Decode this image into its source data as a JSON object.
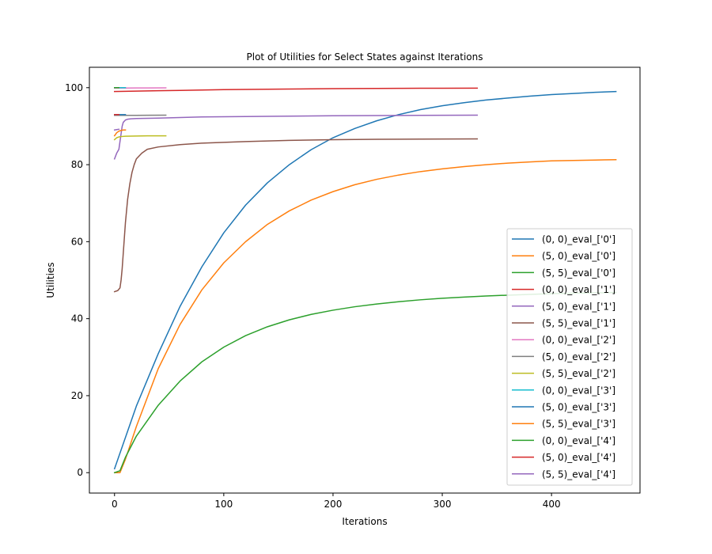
{
  "chart_data": {
    "type": "line",
    "title": "Plot of Utilities for Select States against Iterations",
    "xlabel": "Iterations",
    "ylabel": "Utilities",
    "xlim": [
      -23,
      481
    ],
    "ylim": [
      -5.3,
      105.3
    ],
    "xticks": [
      0,
      100,
      200,
      300,
      400
    ],
    "yticks": [
      0,
      20,
      40,
      60,
      80,
      100
    ],
    "grid": false,
    "legend_position": "lower-right",
    "series": [
      {
        "name": "(0, 0)_eval_['0']",
        "color": "#1f77b4",
        "x": [
          0,
          20,
          40,
          60,
          80,
          100,
          120,
          140,
          160,
          180,
          200,
          220,
          240,
          260,
          280,
          300,
          320,
          340,
          360,
          380,
          400,
          420,
          440,
          459
        ],
        "y": [
          1,
          17.3,
          30.9,
          43.2,
          53.5,
          62.3,
          69.5,
          75.3,
          80.0,
          83.9,
          87.0,
          89.4,
          91.4,
          93.0,
          94.3,
          95.3,
          96.1,
          96.8,
          97.3,
          97.8,
          98.2,
          98.5,
          98.8,
          99.0
        ]
      },
      {
        "name": "(5, 0)_eval_['0']",
        "color": "#ff7f0e",
        "x": [
          0,
          5,
          10,
          20,
          40,
          60,
          80,
          100,
          120,
          140,
          160,
          180,
          200,
          220,
          240,
          260,
          280,
          300,
          320,
          340,
          360,
          380,
          400,
          420,
          440,
          459
        ],
        "y": [
          0,
          0,
          3.5,
          12,
          27.0,
          38.5,
          47.5,
          54.5,
          60.0,
          64.5,
          68.0,
          70.8,
          73.0,
          74.8,
          76.2,
          77.3,
          78.2,
          78.9,
          79.5,
          80.0,
          80.4,
          80.7,
          81.0,
          81.1,
          81.2,
          81.3
        ]
      },
      {
        "name": "(5, 5)_eval_['0']",
        "color": "#2ca02c",
        "x": [
          0,
          5,
          10,
          20,
          40,
          60,
          80,
          100,
          120,
          140,
          160,
          180,
          200,
          220,
          240,
          260,
          280,
          300,
          320,
          340,
          360,
          380,
          400,
          420,
          440,
          459
        ],
        "y": [
          0,
          0.5,
          4.0,
          9.5,
          17.5,
          23.8,
          28.8,
          32.6,
          35.6,
          37.9,
          39.7,
          41.1,
          42.2,
          43.1,
          43.8,
          44.4,
          44.9,
          45.3,
          45.6,
          45.9,
          46.1,
          46.3,
          46.5,
          46.6,
          46.7,
          46.8
        ]
      },
      {
        "name": "(0, 0)_eval_['1']",
        "color": "#d62728",
        "x": [
          0,
          20,
          40,
          60,
          80,
          100,
          120,
          140,
          160,
          180,
          200,
          220,
          240,
          260,
          280,
          300,
          332
        ],
        "y": [
          99.0,
          99.1,
          99.2,
          99.3,
          99.4,
          99.5,
          99.55,
          99.6,
          99.65,
          99.7,
          99.75,
          99.78,
          99.8,
          99.82,
          99.84,
          99.86,
          99.88
        ]
      },
      {
        "name": "(5, 0)_eval_['1']",
        "color": "#9467bd",
        "x": [
          0,
          2,
          4,
          5,
          6,
          7,
          8,
          10,
          12,
          15,
          20,
          40,
          80,
          120,
          160,
          200,
          240,
          280,
          332
        ],
        "y": [
          81.5,
          83,
          84,
          86,
          88,
          90,
          91,
          91.6,
          91.8,
          91.9,
          92.0,
          92.1,
          92.4,
          92.5,
          92.6,
          92.7,
          92.75,
          92.8,
          92.85
        ]
      },
      {
        "name": "(5, 5)_eval_['1']",
        "color": "#8c564b",
        "x": [
          0,
          3,
          5,
          6,
          7,
          8,
          9,
          10,
          12,
          14,
          16,
          18,
          20,
          25,
          30,
          40,
          60,
          80,
          120,
          160,
          200,
          240,
          280,
          332
        ],
        "y": [
          47,
          47.3,
          48,
          50,
          53,
          57,
          61,
          65,
          71,
          75,
          78,
          80,
          81.5,
          83,
          84,
          84.6,
          85.2,
          85.6,
          86.0,
          86.3,
          86.5,
          86.6,
          86.65,
          86.7
        ]
      },
      {
        "name": "(0, 0)_eval_['2']",
        "color": "#e377c2",
        "x": [
          0,
          10,
          20,
          30,
          47
        ],
        "y": [
          99.9,
          99.9,
          99.92,
          99.93,
          99.95
        ]
      },
      {
        "name": "(5, 0)_eval_['2']",
        "color": "#7f7f7f",
        "x": [
          0,
          10,
          20,
          30,
          47
        ],
        "y": [
          92.8,
          92.8,
          92.82,
          92.83,
          92.85
        ]
      },
      {
        "name": "(5, 5)_eval_['2']",
        "color": "#bcbd22",
        "x": [
          0,
          2,
          4,
          6,
          10,
          20,
          30,
          47
        ],
        "y": [
          86.5,
          87.0,
          87.2,
          87.3,
          87.4,
          87.45,
          87.5,
          87.5
        ]
      },
      {
        "name": "(0, 0)_eval_['3']",
        "color": "#17becf",
        "x": [
          0,
          5,
          10
        ],
        "y": [
          100.0,
          100.0,
          100.0
        ]
      },
      {
        "name": "(5, 0)_eval_['3']",
        "color": "#1f77b4",
        "x": [
          0,
          5,
          10
        ],
        "y": [
          93.0,
          93.0,
          93.0
        ]
      },
      {
        "name": "(5, 5)_eval_['3']",
        "color": "#ff7f0e",
        "x": [
          0,
          2,
          4,
          6,
          8,
          10
        ],
        "y": [
          87.5,
          88.3,
          88.7,
          88.9,
          89.0,
          89.0
        ]
      },
      {
        "name": "(0, 0)_eval_['4']",
        "color": "#2ca02c",
        "x": [
          0,
          2,
          4
        ],
        "y": [
          100.0,
          100.0,
          100.0
        ]
      },
      {
        "name": "(5, 0)_eval_['4']",
        "color": "#d62728",
        "x": [
          0,
          2,
          4
        ],
        "y": [
          93.0,
          93.0,
          93.0
        ]
      },
      {
        "name": "(5, 5)_eval_['4']",
        "color": "#9467bd",
        "x": [
          0,
          2,
          4
        ],
        "y": [
          89.0,
          89.1,
          89.2
        ]
      }
    ]
  }
}
